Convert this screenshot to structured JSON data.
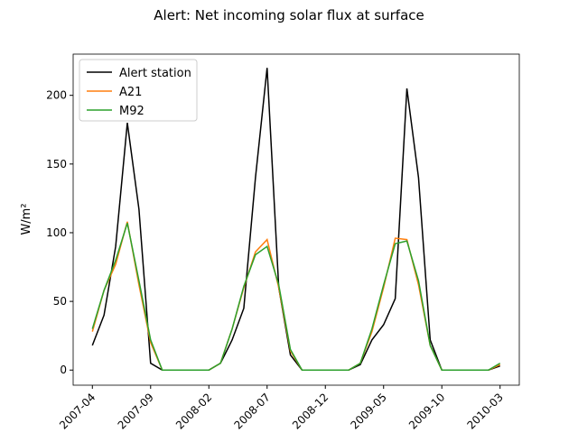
{
  "chart_data": {
    "type": "line",
    "title": "Alert: Net incoming solar flux at surface",
    "y_label": "W/m²",
    "x": [
      "2007-04",
      "2007-05",
      "2007-06",
      "2007-07",
      "2007-08",
      "2007-09",
      "2007-10",
      "2007-11",
      "2007-12",
      "2008-01",
      "2008-02",
      "2008-03",
      "2008-04",
      "2008-05",
      "2008-06",
      "2008-07",
      "2008-08",
      "2008-09",
      "2008-10",
      "2008-11",
      "2008-12",
      "2009-01",
      "2009-02",
      "2009-03",
      "2009-04",
      "2009-05",
      "2009-06",
      "2009-07",
      "2009-08",
      "2009-09",
      "2009-10",
      "2009-11",
      "2009-12",
      "2010-01",
      "2010-02",
      "2010-03"
    ],
    "xticks": [
      "2007-04",
      "2007-09",
      "2008-02",
      "2008-07",
      "2008-12",
      "2009-05",
      "2009-10",
      "2010-03"
    ],
    "series": [
      {
        "name": "Alert station",
        "color": "#000000",
        "values": [
          18,
          40,
          90,
          180,
          117,
          5,
          0,
          0,
          0,
          0,
          0,
          5,
          22,
          45,
          140,
          220,
          60,
          11,
          0,
          0,
          0,
          0,
          0,
          4,
          22,
          33,
          52,
          205,
          140,
          22,
          0,
          0,
          0,
          0,
          0,
          3
        ]
      },
      {
        "name": "A21",
        "color": "#ff7f0e",
        "values": [
          28,
          58,
          77,
          108,
          62,
          20,
          0,
          0,
          0,
          0,
          0,
          5,
          30,
          60,
          86,
          95,
          60,
          14,
          0,
          0,
          0,
          0,
          0,
          5,
          28,
          60,
          96,
          95,
          62,
          18,
          0,
          0,
          0,
          0,
          0,
          4
        ]
      },
      {
        "name": "M92",
        "color": "#2ca02c",
        "values": [
          30,
          58,
          80,
          107,
          65,
          22,
          0,
          0,
          0,
          0,
          0,
          5,
          30,
          61,
          84,
          90,
          62,
          15,
          0,
          0,
          0,
          0,
          0,
          5,
          30,
          62,
          92,
          94,
          65,
          18,
          0,
          0,
          0,
          0,
          0,
          5
        ]
      }
    ],
    "ylim": [
      -11,
      230
    ],
    "yticks": [
      0,
      50,
      100,
      150,
      200
    ],
    "legend": "upper left"
  }
}
